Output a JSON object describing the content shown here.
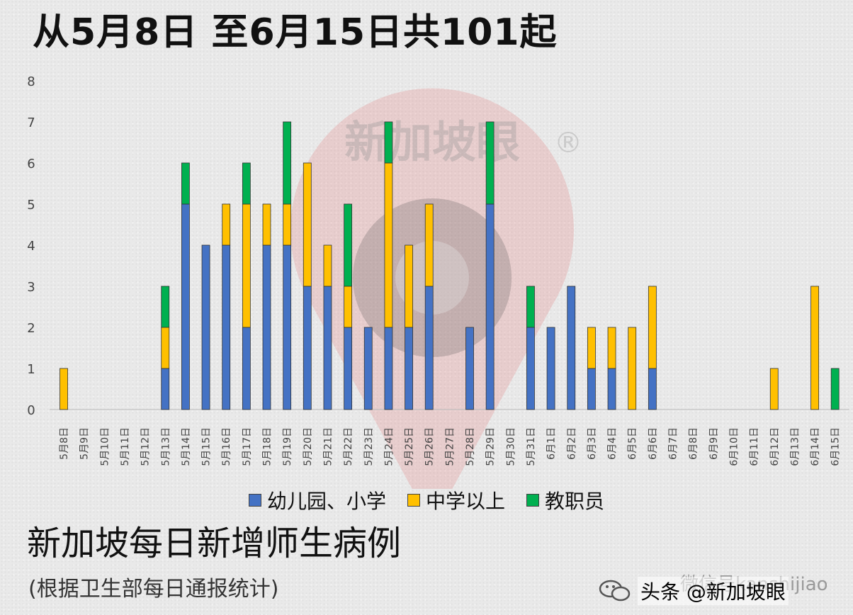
{
  "headline": "从5月8日 至6月15日共101起",
  "subtitle": "新加坡每日新增师生病例",
  "note": "(根据卫生部每日通报统计)",
  "watermark": {
    "text": "新加坡眼",
    "mark": "®"
  },
  "footer": {
    "wechat": "微信号kanshijiao",
    "toutiao": "头条 @新加坡眼"
  },
  "chart_data": {
    "type": "bar",
    "stacked": true,
    "title": "",
    "xlabel": "",
    "ylabel": "",
    "ylim": [
      0,
      8
    ],
    "y_ticks": [
      0,
      1,
      2,
      3,
      4,
      5,
      6,
      7,
      8
    ],
    "grid": false,
    "legend_position": "bottom",
    "categories": [
      "5月8日",
      "5月9日",
      "5月10日",
      "5月11日",
      "5月12日",
      "5月13日",
      "5月14日",
      "5月15日",
      "5月16日",
      "5月17日",
      "5月18日",
      "5月19日",
      "5月20日",
      "5月21日",
      "5月22日",
      "5月23日",
      "5月24日",
      "5月25日",
      "5月26日",
      "5月27日",
      "5月28日",
      "5月29日",
      "5月30日",
      "5月31日",
      "6月1日",
      "6月2日",
      "6月3日",
      "6月4日",
      "6月5日",
      "6月6日",
      "6月7日",
      "6月8日",
      "6月9日",
      "6月10日",
      "6月11日",
      "6月12日",
      "6月13日",
      "6月14日",
      "6月15日"
    ],
    "series": [
      {
        "name": "幼儿园、小学",
        "color": "#4472c4",
        "values": [
          0,
          0,
          0,
          0,
          0,
          1,
          5,
          4,
          4,
          2,
          4,
          4,
          3,
          3,
          2,
          2,
          2,
          2,
          3,
          0,
          2,
          5,
          0,
          2,
          2,
          3,
          1,
          1,
          0,
          1,
          0,
          0,
          0,
          0,
          0,
          0,
          0,
          0,
          0
        ]
      },
      {
        "name": "中学以上",
        "color": "#ffc000",
        "values": [
          1,
          0,
          0,
          0,
          0,
          1,
          0,
          0,
          1,
          3,
          1,
          1,
          3,
          1,
          1,
          0,
          4,
          2,
          2,
          0,
          0,
          0,
          0,
          0,
          0,
          0,
          1,
          1,
          2,
          2,
          0,
          0,
          0,
          0,
          0,
          1,
          0,
          3,
          0
        ]
      },
      {
        "name": "教职员",
        "color": "#00b050",
        "values": [
          0,
          0,
          0,
          0,
          0,
          1,
          1,
          0,
          0,
          1,
          0,
          2,
          0,
          0,
          2,
          0,
          1,
          0,
          0,
          0,
          0,
          2,
          0,
          1,
          0,
          0,
          0,
          0,
          0,
          0,
          0,
          0,
          0,
          0,
          0,
          0,
          0,
          0,
          1
        ]
      }
    ]
  }
}
